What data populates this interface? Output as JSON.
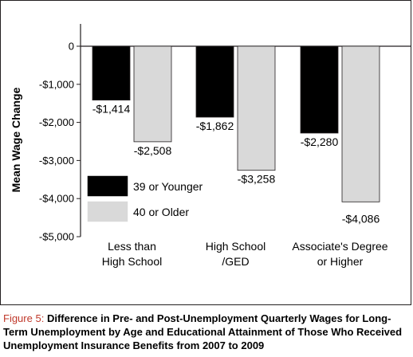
{
  "chart_data": {
    "type": "bar",
    "ylabel": "Mean Wage Change",
    "ylim": [
      -5000,
      0
    ],
    "yticks": [
      0,
      -1000,
      -2000,
      -3000,
      -4000,
      -5000
    ],
    "ytick_labels": [
      "0",
      "-$1,000",
      "-$2,000",
      "-$3,000",
      "-$4,000",
      "-$5,000"
    ],
    "categories": [
      [
        "Less than",
        "High School"
      ],
      [
        "High School",
        "/GED"
      ],
      [
        "Associate's Degree",
        "or Higher"
      ]
    ],
    "series": [
      {
        "name": "39 or Younger",
        "color": "#000000",
        "values": [
          -1414,
          -1862,
          -2280
        ],
        "labels": [
          "-$1,414",
          "-$1,862",
          "-$2,280"
        ]
      },
      {
        "name": "40 or Older",
        "color": "#d9d9d9",
        "values": [
          -2508,
          -3258,
          -4086
        ],
        "labels": [
          "-$2,508",
          "-$3,258",
          "-$4,086"
        ]
      }
    ],
    "legend_placement": "lower-left",
    "grid": false
  },
  "caption": {
    "prefix": "Figure 5:",
    "text": "Difference in Pre- and Post-Unemployment Quarterly Wages for Long-Term Unemployment by Age and Educational Attainment of Those Who Received Unemployment Insurance Benefits from 2007 to 2009"
  }
}
